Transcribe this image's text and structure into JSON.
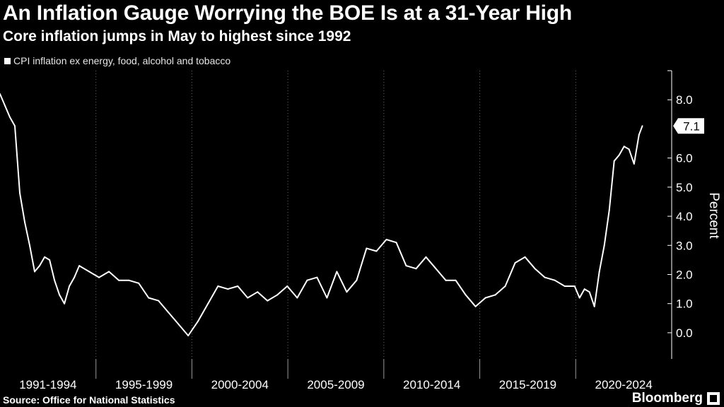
{
  "header": {
    "title": "An Inflation Gauge Worrying the BOE Is at a 31-Year High",
    "subtitle": "Core inflation jumps in May to highest since 1992"
  },
  "footer": {
    "source": "Source: Office for National Statistics",
    "brand": "Bloomberg"
  },
  "colors": {
    "background": "#000000",
    "line": "#ffffff",
    "grid": "#666666"
  },
  "chart_data": {
    "type": "line",
    "title": "An Inflation Gauge Worrying the BOE Is at a 31-Year High",
    "subtitle": "Core inflation jumps in May to highest since 1992",
    "series": [
      {
        "name": "CPI inflation ex energy, food, alcohol and tobacco",
        "x": [
          1991.0,
          1991.25,
          1991.5,
          1991.75,
          1992.0,
          1992.25,
          1992.5,
          1992.75,
          1993.0,
          1993.25,
          1993.5,
          1993.75,
          1994.0,
          1994.25,
          1994.5,
          1994.75,
          1995.0,
          1995.5,
          1996.0,
          1996.5,
          1997.0,
          1997.5,
          1998.0,
          1998.5,
          1999.0,
          1999.5,
          2000.0,
          2000.5,
          2001.0,
          2001.5,
          2002.0,
          2002.5,
          2003.0,
          2003.5,
          2004.0,
          2004.5,
          2005.0,
          2005.5,
          2006.0,
          2006.5,
          2007.0,
          2007.5,
          2008.0,
          2008.5,
          2009.0,
          2009.5,
          2010.0,
          2010.5,
          2011.0,
          2011.5,
          2012.0,
          2012.5,
          2013.0,
          2013.5,
          2014.0,
          2014.5,
          2015.0,
          2015.5,
          2016.0,
          2016.5,
          2017.0,
          2017.5,
          2018.0,
          2018.5,
          2019.0,
          2019.5,
          2020.0,
          2020.25,
          2020.5,
          2020.75,
          2021.0,
          2021.25,
          2021.5,
          2021.75,
          2022.0,
          2022.25,
          2022.5,
          2022.75,
          2023.0,
          2023.25,
          2023.42
        ],
        "values": [
          8.2,
          7.8,
          7.4,
          7.1,
          4.8,
          3.8,
          3.0,
          2.1,
          2.3,
          2.6,
          2.5,
          1.8,
          1.3,
          1.0,
          1.6,
          1.9,
          2.3,
          2.1,
          1.9,
          2.1,
          1.8,
          1.8,
          1.7,
          1.2,
          1.1,
          0.7,
          0.3,
          -0.1,
          0.4,
          1.0,
          1.6,
          1.5,
          1.6,
          1.2,
          1.4,
          1.1,
          1.3,
          1.6,
          1.2,
          1.8,
          1.9,
          1.2,
          2.1,
          1.4,
          1.8,
          2.9,
          2.8,
          3.2,
          3.1,
          2.3,
          2.2,
          2.6,
          2.2,
          1.8,
          1.8,
          1.3,
          0.9,
          1.2,
          1.3,
          1.6,
          2.4,
          2.6,
          2.2,
          1.9,
          1.8,
          1.6,
          1.6,
          1.2,
          1.5,
          1.4,
          0.9,
          2.1,
          3.0,
          4.2,
          5.9,
          6.1,
          6.4,
          6.3,
          5.8,
          6.8,
          7.1
        ],
        "last_label": "7.1"
      }
    ],
    "x_categories": [
      "1991-1994",
      "1995-1999",
      "2000-2004",
      "2005-2009",
      "2010-2014",
      "2015-2019",
      "2020-2024"
    ],
    "xlim": [
      1991,
      2024.9
    ],
    "y_ticks": [
      "0.0",
      "1.0",
      "2.0",
      "3.0",
      "4.0",
      "5.0",
      "6.0",
      "8.0"
    ],
    "ylim": [
      -0.9,
      9.0
    ],
    "ylabel": "Percent",
    "xlabel": "",
    "legend": "top-left",
    "grid": true
  }
}
